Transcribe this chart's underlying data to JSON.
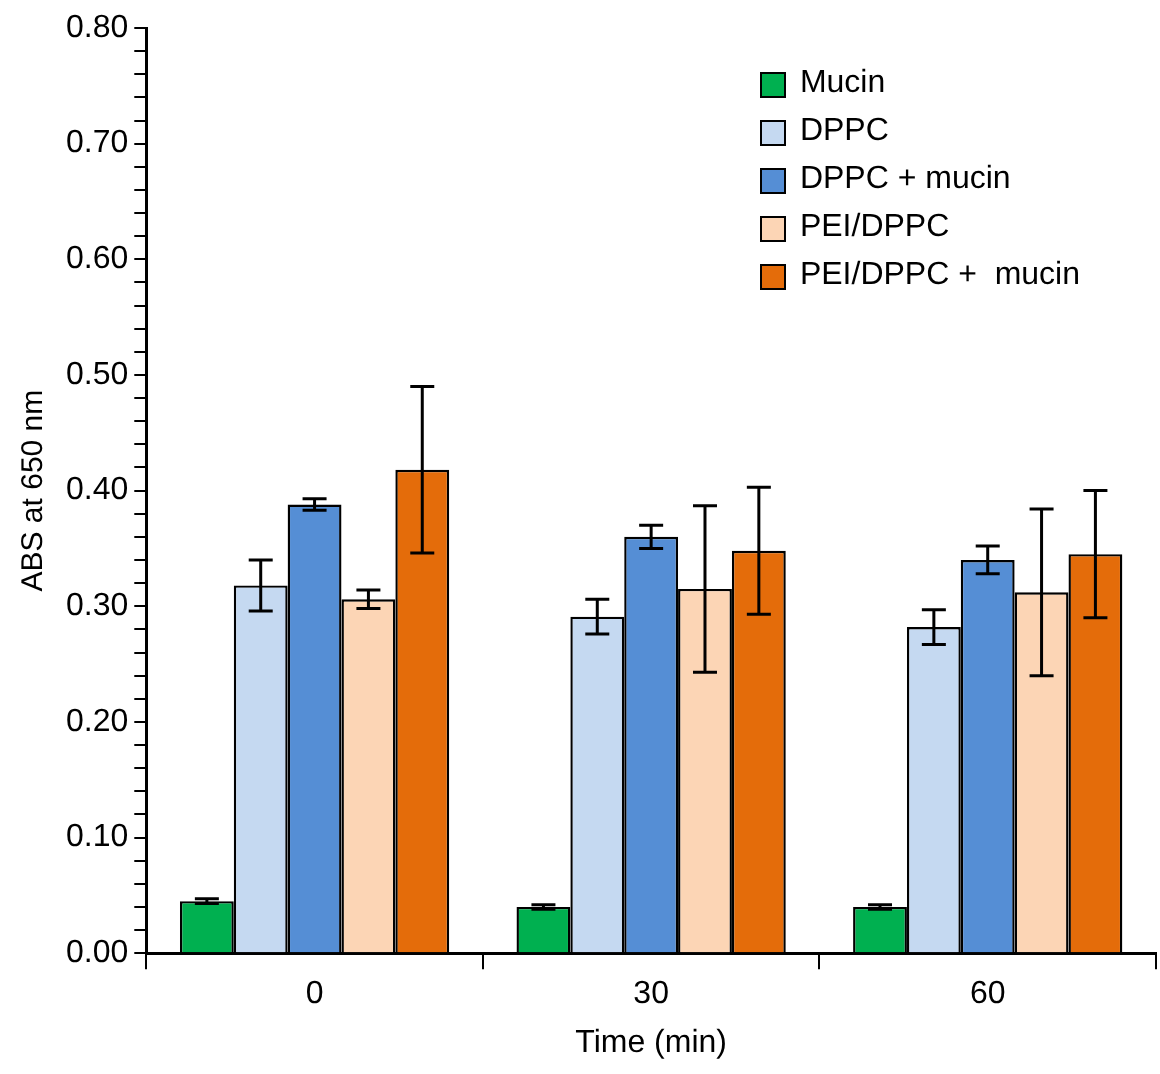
{
  "chart_data": {
    "type": "bar",
    "xlabel": "Time (min)",
    "ylabel": "ABS at 650 nm",
    "categories": [
      "0",
      "30",
      "60"
    ],
    "series": [
      {
        "name": "Mucin",
        "color": "#00b050",
        "values": [
          0.045,
          0.04,
          0.04
        ],
        "errors": [
          0.002,
          0.002,
          0.002
        ]
      },
      {
        "name": "DPPC",
        "color": "#c5d9f1",
        "values": [
          0.318,
          0.291,
          0.282
        ],
        "errors": [
          0.022,
          0.015,
          0.015
        ]
      },
      {
        "name": "DPPC + mucin",
        "color": "#558ed5",
        "values": [
          0.388,
          0.36,
          0.34
        ],
        "errors": [
          0.005,
          0.01,
          0.012
        ]
      },
      {
        "name": "PEI/DPPC",
        "color": "#fcd5b5",
        "values": [
          0.306,
          0.315,
          0.312
        ],
        "errors": [
          0.008,
          0.072,
          0.072
        ]
      },
      {
        "name": "PEI/DPPC +  mucin",
        "color": "#e46c0a",
        "values": [
          0.418,
          0.348,
          0.345
        ],
        "errors": [
          0.072,
          0.055,
          0.055
        ]
      }
    ],
    "ylim": [
      0,
      0.8
    ],
    "yticks": [
      {
        "value": 0,
        "label": "0.00"
      },
      {
        "value": 0.02,
        "label": null
      },
      {
        "value": 0.04,
        "label": null
      },
      {
        "value": 0.06,
        "label": null
      },
      {
        "value": 0.08,
        "label": null
      },
      {
        "value": 0.1,
        "label": "0.10"
      },
      {
        "value": 0.12,
        "label": null
      },
      {
        "value": 0.14,
        "label": null
      },
      {
        "value": 0.16,
        "label": null
      },
      {
        "value": 0.18,
        "label": null
      },
      {
        "value": 0.2,
        "label": "0.20"
      },
      {
        "value": 0.22,
        "label": null
      },
      {
        "value": 0.24,
        "label": null
      },
      {
        "value": 0.26,
        "label": null
      },
      {
        "value": 0.28,
        "label": null
      },
      {
        "value": 0.3,
        "label": "0.30"
      },
      {
        "value": 0.32,
        "label": null
      },
      {
        "value": 0.34,
        "label": null
      },
      {
        "value": 0.36,
        "label": null
      },
      {
        "value": 0.38,
        "label": null
      },
      {
        "value": 0.4,
        "label": "0.40"
      },
      {
        "value": 0.42,
        "label": null
      },
      {
        "value": 0.44,
        "label": null
      },
      {
        "value": 0.46,
        "label": null
      },
      {
        "value": 0.48,
        "label": null
      },
      {
        "value": 0.5,
        "label": "0.50"
      },
      {
        "value": 0.52,
        "label": null
      },
      {
        "value": 0.54,
        "label": null
      },
      {
        "value": 0.56,
        "label": null
      },
      {
        "value": 0.58,
        "label": null
      },
      {
        "value": 0.6,
        "label": "0.60"
      },
      {
        "value": 0.62,
        "label": null
      },
      {
        "value": 0.64,
        "label": null
      },
      {
        "value": 0.66,
        "label": null
      },
      {
        "value": 0.68,
        "label": null
      },
      {
        "value": 0.7,
        "label": "0.70"
      },
      {
        "value": 0.72,
        "label": null
      },
      {
        "value": 0.74,
        "label": null
      },
      {
        "value": 0.76,
        "label": null
      },
      {
        "value": 0.78,
        "label": null
      },
      {
        "value": 0.8,
        "label": "0.80"
      }
    ],
    "grid": false,
    "legend": "top right"
  }
}
